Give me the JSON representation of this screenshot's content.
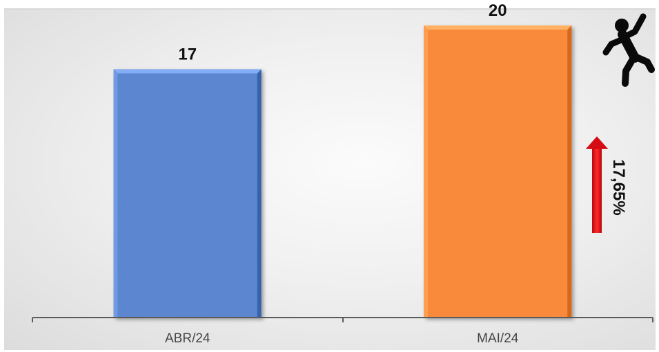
{
  "chart_data": {
    "type": "bar",
    "categories": [
      "ABR/24",
      "MAI/24"
    ],
    "values": [
      17,
      20
    ],
    "data_labels": [
      "17",
      "20"
    ],
    "colors": [
      "#5b86cf",
      "#f98a3b"
    ],
    "title": "",
    "xlabel": "",
    "ylabel": "",
    "ylim": [
      0,
      20.8
    ],
    "grid": false,
    "legend": "none"
  },
  "annotation": {
    "growth_text": "17,65%",
    "growth_direction": "up",
    "arrow_color": "#e0101a",
    "icon": "running-person-icon"
  }
}
